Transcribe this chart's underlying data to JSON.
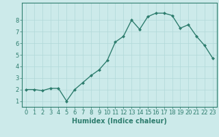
{
  "x": [
    0,
    1,
    2,
    3,
    4,
    5,
    6,
    7,
    8,
    9,
    10,
    11,
    12,
    13,
    14,
    15,
    16,
    17,
    18,
    19,
    20,
    21,
    22,
    23
  ],
  "y": [
    2.0,
    2.0,
    1.9,
    2.1,
    2.1,
    1.0,
    2.0,
    2.6,
    3.2,
    3.7,
    4.5,
    6.1,
    6.6,
    8.0,
    7.2,
    8.3,
    8.6,
    8.6,
    8.4,
    7.3,
    7.6,
    6.6,
    5.8,
    4.7
  ],
  "line_color": "#2e7d6e",
  "marker": "D",
  "marker_size": 2.0,
  "line_width": 1.0,
  "bg_color": "#cceaea",
  "grid_color": "#b0d8d8",
  "xlabel": "Humidex (Indice chaleur)",
  "xlabel_fontsize": 7,
  "tick_fontsize": 6,
  "xlim": [
    -0.5,
    23.5
  ],
  "ylim": [
    0.5,
    9.5
  ],
  "yticks": [
    1,
    2,
    3,
    4,
    5,
    6,
    7,
    8
  ],
  "xticks": [
    0,
    1,
    2,
    3,
    4,
    5,
    6,
    7,
    8,
    9,
    10,
    11,
    12,
    13,
    14,
    15,
    16,
    17,
    18,
    19,
    20,
    21,
    22,
    23
  ],
  "tick_color": "#2e7d6e",
  "axis_color": "#2e7d6e",
  "spine_color": "#2e7d6e"
}
